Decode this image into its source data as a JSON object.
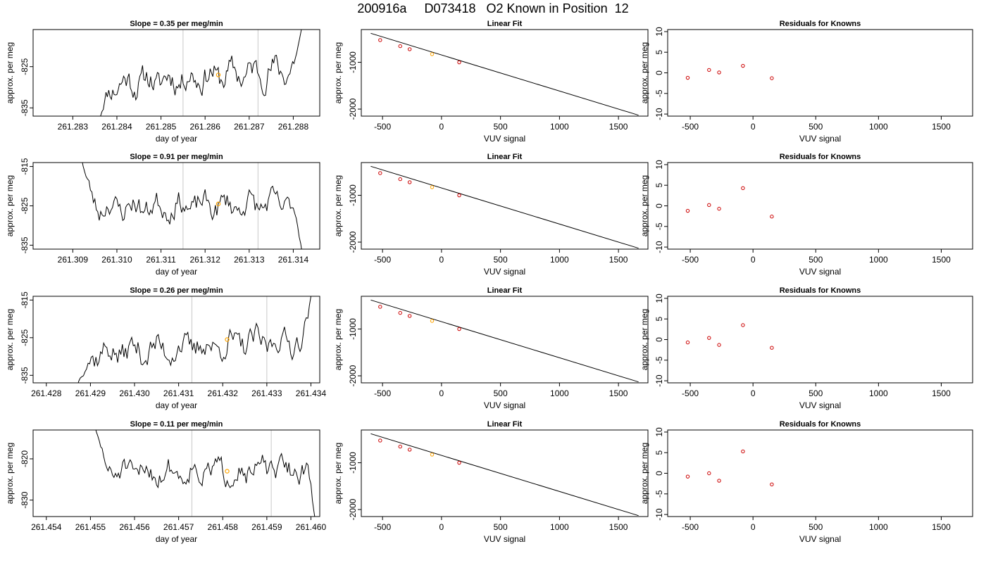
{
  "page": {
    "title": "200916a     D073418   O2 Known in Position  12"
  },
  "chart_data": [
    {
      "type": "line",
      "row": 0,
      "title": "Slope =  0.35  per meg/min",
      "xlabel": "day of year",
      "ylabel": "approx. per meg",
      "xlim": [
        261.2821,
        261.2886
      ],
      "ylim": [
        -837,
        -816
      ],
      "xticks": [
        261.283,
        261.284,
        261.285,
        261.286,
        261.287,
        261.288
      ],
      "xtick_labels": [
        "261.283",
        "261.284",
        "261.285",
        "261.286",
        "261.287",
        "261.288"
      ],
      "yticks": [
        -825,
        -835
      ],
      "ytick_labels": [
        "-825",
        "-835"
      ],
      "vlines": [
        261.2855,
        261.2872
      ],
      "marker": {
        "x": 261.2863,
        "y": -827,
        "color": "#FFA500"
      },
      "trace": {
        "x0": 261.2836,
        "x1": 261.2882,
        "seed": 11,
        "base": -829.5,
        "trend": 4.0,
        "amp": 1.6,
        "start": {
          "len": 0.09,
          "from": -838
        },
        "end": {
          "len": 0.06,
          "to": -815
        }
      }
    },
    {
      "type": "line",
      "row": 1,
      "title": "Slope =  0.91  per meg/min",
      "xlabel": "day of year",
      "ylabel": "approx. per meg",
      "xlim": [
        261.3081,
        261.3146
      ],
      "ylim": [
        -836,
        -814
      ],
      "xticks": [
        261.309,
        261.31,
        261.311,
        261.312,
        261.313,
        261.314
      ],
      "xtick_labels": [
        "261.309",
        "261.310",
        "261.311",
        "261.312",
        "261.313",
        "261.314"
      ],
      "yticks": [
        -815,
        -825,
        -835
      ],
      "ytick_labels": [
        "-815",
        "-825",
        "-835"
      ],
      "vlines": [
        261.3115,
        261.3132
      ],
      "marker": {
        "x": 261.3123,
        "y": -824.5,
        "color": "#FFA500"
      },
      "trace": {
        "x0": 261.3092,
        "x1": 261.3142,
        "seed": 23,
        "base": -825.5,
        "trend": 1.0,
        "amp": 1.5,
        "start": {
          "len": 0.09,
          "from": -813
        },
        "end": {
          "len": 0.06,
          "to": -837
        }
      }
    },
    {
      "type": "line",
      "row": 2,
      "title": "Slope =  0.26  per meg/min",
      "xlabel": "day of year",
      "ylabel": "approx. per meg",
      "xlim": [
        261.4277,
        261.4342
      ],
      "ylim": [
        -837,
        -814
      ],
      "xticks": [
        261.428,
        261.429,
        261.43,
        261.431,
        261.432,
        261.433,
        261.434
      ],
      "xtick_labels": [
        "261.428",
        "261.429",
        "261.430",
        "261.431",
        "261.432",
        "261.433",
        "261.434"
      ],
      "yticks": [
        -815,
        -825,
        -835
      ],
      "ytick_labels": [
        "-815",
        "-825",
        "-835"
      ],
      "vlines": [
        261.4313,
        261.433
      ],
      "marker": {
        "x": 261.4321,
        "y": -825.5,
        "color": "#FFA500"
      },
      "trace": {
        "x0": 261.4287,
        "x1": 261.434,
        "seed": 37,
        "base": -829.5,
        "trend": 4.0,
        "amp": 1.8,
        "start": {
          "len": 0.08,
          "from": -838
        },
        "end": {
          "len": 0.05,
          "to": -814
        }
      }
    },
    {
      "type": "line",
      "row": 3,
      "title": "Slope =  0.11  per meg/min",
      "xlabel": "day of year",
      "ylabel": "approx. per meg",
      "xlim": [
        261.4537,
        261.4602
      ],
      "ylim": [
        -834,
        -813
      ],
      "xticks": [
        261.454,
        261.455,
        261.456,
        261.457,
        261.458,
        261.459,
        261.46
      ],
      "xtick_labels": [
        "261.454",
        "261.455",
        "261.456",
        "261.457",
        "261.458",
        "261.459",
        "261.460"
      ],
      "yticks": [
        -820,
        -830
      ],
      "ytick_labels": [
        "-820",
        "-830"
      ],
      "vlines": [
        261.4573,
        261.4591
      ],
      "marker": {
        "x": 261.4581,
        "y": -823,
        "color": "#FFA500"
      },
      "trace": {
        "x0": 261.4551,
        "x1": 261.4601,
        "seed": 51,
        "base": -823.5,
        "trend": 1.0,
        "amp": 1.4,
        "start": {
          "len": 0.09,
          "from": -812
        },
        "end": {
          "len": 0.06,
          "to": -835
        }
      }
    },
    {
      "type": "scatter",
      "row": 0,
      "title": "Linear Fit",
      "xlabel": "VUV signal",
      "ylabel": "approx. per meg",
      "xlim": [
        -680,
        1750
      ],
      "ylim": [
        -2150,
        -300
      ],
      "xticks": [
        -500,
        0,
        500,
        1000,
        1500
      ],
      "xtick_labels": [
        "-500",
        "0",
        "500",
        "1000",
        "1500"
      ],
      "yticks": [
        -1000,
        -2000
      ],
      "ytick_labels": [
        "-1000",
        "-2000"
      ],
      "line": {
        "x": [
          -600,
          1670
        ],
        "y": [
          -380,
          -2130
        ]
      },
      "points": {
        "x": [
          -520,
          -350,
          -270,
          -80,
          150
        ],
        "y": [
          -525,
          -655,
          -720,
          -825,
          -1000
        ]
      },
      "highlight_index": 3,
      "point_color": "#CC0000",
      "highlight_color": "#FFA500"
    },
    {
      "type": "scatter",
      "row": 1,
      "title": "Linear Fit",
      "xlabel": "VUV signal",
      "ylabel": "approx. per meg",
      "xlim": [
        -680,
        1750
      ],
      "ylim": [
        -2150,
        -300
      ],
      "xticks": [
        -500,
        0,
        500,
        1000,
        1500
      ],
      "xtick_labels": [
        "-500",
        "0",
        "500",
        "1000",
        "1500"
      ],
      "yticks": [
        -1000,
        -2000
      ],
      "ytick_labels": [
        "-1000",
        "-2000"
      ],
      "line": {
        "x": [
          -600,
          1670
        ],
        "y": [
          -380,
          -2130
        ]
      },
      "points": {
        "x": [
          -520,
          -350,
          -270,
          -80,
          150
        ],
        "y": [
          -525,
          -655,
          -720,
          -825,
          -1000
        ]
      },
      "highlight_index": 3,
      "point_color": "#CC0000",
      "highlight_color": "#FFA500"
    },
    {
      "type": "scatter",
      "row": 2,
      "title": "Linear Fit",
      "xlabel": "VUV signal",
      "ylabel": "approx. per meg",
      "xlim": [
        -680,
        1750
      ],
      "ylim": [
        -2150,
        -300
      ],
      "xticks": [
        -500,
        0,
        500,
        1000,
        1500
      ],
      "xtick_labels": [
        "-500",
        "0",
        "500",
        "1000",
        "1500"
      ],
      "yticks": [
        -1000,
        -2000
      ],
      "ytick_labels": [
        "-1000",
        "-2000"
      ],
      "line": {
        "x": [
          -600,
          1670
        ],
        "y": [
          -380,
          -2130
        ]
      },
      "points": {
        "x": [
          -520,
          -350,
          -270,
          -80,
          150
        ],
        "y": [
          -525,
          -655,
          -720,
          -825,
          -1000
        ]
      },
      "highlight_index": 3,
      "point_color": "#CC0000",
      "highlight_color": "#FFA500"
    },
    {
      "type": "scatter",
      "row": 3,
      "title": "Linear Fit",
      "xlabel": "VUV signal",
      "ylabel": "approx. per meg",
      "xlim": [
        -680,
        1750
      ],
      "ylim": [
        -2150,
        -300
      ],
      "xticks": [
        -500,
        0,
        500,
        1000,
        1500
      ],
      "xtick_labels": [
        "-500",
        "0",
        "500",
        "1000",
        "1500"
      ],
      "yticks": [
        -1000,
        -2000
      ],
      "ytick_labels": [
        "-1000",
        "-2000"
      ],
      "line": {
        "x": [
          -600,
          1670
        ],
        "y": [
          -380,
          -2130
        ]
      },
      "points": {
        "x": [
          -520,
          -350,
          -270,
          -80,
          150
        ],
        "y": [
          -525,
          -655,
          -720,
          -825,
          -1000
        ]
      },
      "highlight_index": 3,
      "point_color": "#CC0000",
      "highlight_color": "#FFA500"
    },
    {
      "type": "scatter",
      "row": 0,
      "title": "Residuals for Knowns",
      "xlabel": "VUV signal",
      "ylabel": "approx. per meg",
      "xlim": [
        -680,
        1750
      ],
      "ylim": [
        -10.5,
        10.5
      ],
      "xticks": [
        -500,
        0,
        500,
        1000,
        1500
      ],
      "xtick_labels": [
        "-500",
        "0",
        "500",
        "1000",
        "1500"
      ],
      "yticks": [
        10,
        5,
        0,
        -5,
        -10
      ],
      "ytick_labels": [
        "10",
        "5",
        "0",
        "-5",
        "-10"
      ],
      "points": {
        "x": [
          -520,
          -350,
          -270,
          -80,
          150
        ],
        "y": [
          -1.2,
          0.7,
          0.1,
          1.7,
          -1.3
        ]
      },
      "point_color": "#CC0000"
    },
    {
      "type": "scatter",
      "row": 1,
      "title": "Residuals for Knowns",
      "xlabel": "VUV signal",
      "ylabel": "approx. per meg",
      "xlim": [
        -680,
        1750
      ],
      "ylim": [
        -10.5,
        10.5
      ],
      "xticks": [
        -500,
        0,
        500,
        1000,
        1500
      ],
      "xtick_labels": [
        "-500",
        "0",
        "500",
        "1000",
        "1500"
      ],
      "yticks": [
        10,
        5,
        0,
        -5,
        -10
      ],
      "ytick_labels": [
        "10",
        "5",
        "0",
        "-5",
        "-10"
      ],
      "points": {
        "x": [
          -520,
          -350,
          -270,
          -80,
          150
        ],
        "y": [
          -1.2,
          0.2,
          -0.7,
          4.3,
          -2.6
        ]
      },
      "point_color": "#CC0000"
    },
    {
      "type": "scatter",
      "row": 2,
      "title": "Residuals for Knowns",
      "xlabel": "VUV signal",
      "ylabel": "approx. per meg",
      "xlim": [
        -680,
        1750
      ],
      "ylim": [
        -10.5,
        10.5
      ],
      "xticks": [
        -500,
        0,
        500,
        1000,
        1500
      ],
      "xtick_labels": [
        "-500",
        "0",
        "500",
        "1000",
        "1500"
      ],
      "yticks": [
        10,
        5,
        0,
        -5,
        -10
      ],
      "ytick_labels": [
        "10",
        "5",
        "0",
        "-5",
        "-10"
      ],
      "points": {
        "x": [
          -520,
          -350,
          -270,
          -80,
          150
        ],
        "y": [
          -0.7,
          0.4,
          -1.3,
          3.5,
          -2.0
        ]
      },
      "point_color": "#CC0000"
    },
    {
      "type": "scatter",
      "row": 3,
      "title": "Residuals for Knowns",
      "xlabel": "VUV signal",
      "ylabel": "approx. per meg",
      "xlim": [
        -680,
        1750
      ],
      "ylim": [
        -10.5,
        10.5
      ],
      "xticks": [
        -500,
        0,
        500,
        1000,
        1500
      ],
      "xtick_labels": [
        "-500",
        "0",
        "500",
        "1000",
        "1500"
      ],
      "yticks": [
        10,
        5,
        0,
        -5,
        -10
      ],
      "ytick_labels": [
        "10",
        "5",
        "0",
        "-5",
        "-10"
      ],
      "points": {
        "x": [
          -520,
          -350,
          -270,
          -80,
          150
        ],
        "y": [
          -0.8,
          0.0,
          -1.8,
          5.3,
          -2.7
        ]
      },
      "point_color": "#CC0000"
    }
  ]
}
